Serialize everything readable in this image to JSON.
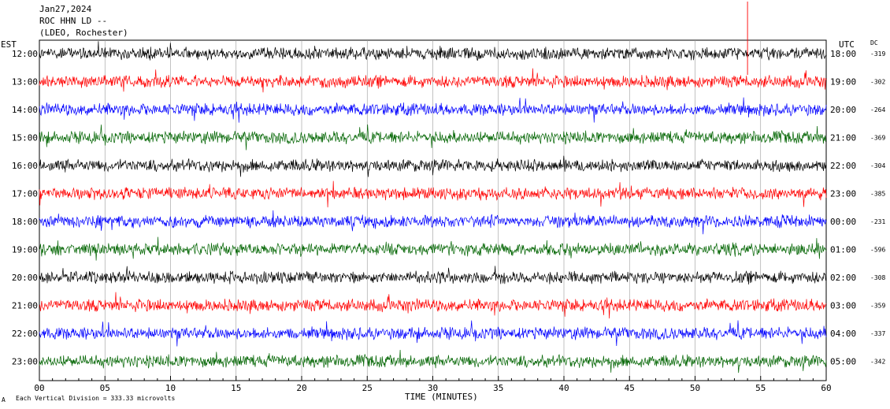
{
  "header": {
    "date": "Jan27,2024",
    "station": "ROC HHN LD --",
    "network": "(LDEO, Rochester)"
  },
  "left_axis_title": "EST",
  "right_axis_title": "UTC",
  "dc_title": "DC",
  "footer": {
    "xlabel": "TIME (MINUTES)",
    "scale_note": "Each Vertical Division =  333.33 microvolts",
    "corner_mark": "A"
  },
  "chart_data": {
    "type": "line",
    "title": "",
    "xlabel": "TIME (MINUTES)",
    "xlim": [
      0,
      60
    ],
    "x_ticks": [
      "00",
      "05",
      "10",
      "15",
      "20",
      "25",
      "30",
      "35",
      "40",
      "45",
      "50",
      "55",
      "60"
    ],
    "trace_colors": [
      "#000000",
      "#ff0000",
      "#0000ff",
      "#006400"
    ],
    "rows": [
      {
        "est": "12:00",
        "utc": "18:00",
        "dc": "-319",
        "color": "#000000"
      },
      {
        "est": "13:00",
        "utc": "19:00",
        "dc": "-302",
        "color": "#ff0000"
      },
      {
        "est": "14:00",
        "utc": "20:00",
        "dc": "-264",
        "color": "#0000ff"
      },
      {
        "est": "15:00",
        "utc": "21:00",
        "dc": "-369",
        "color": "#006400"
      },
      {
        "est": "16:00",
        "utc": "22:00",
        "dc": "-304",
        "color": "#000000"
      },
      {
        "est": "17:00",
        "utc": "23:00",
        "dc": "-385",
        "color": "#ff0000"
      },
      {
        "est": "18:00",
        "utc": "00:00",
        "dc": "-231",
        "color": "#0000ff"
      },
      {
        "est": "19:00",
        "utc": "01:00",
        "dc": "-596",
        "color": "#006400"
      },
      {
        "est": "20:00",
        "utc": "02:00",
        "dc": "-308",
        "color": "#000000"
      },
      {
        "est": "21:00",
        "utc": "03:00",
        "dc": "-359",
        "color": "#ff0000"
      },
      {
        "est": "22:00",
        "utc": "04:00",
        "dc": "-337",
        "color": "#0000ff"
      },
      {
        "est": "23:00",
        "utc": "05:00",
        "dc": "-342",
        "color": "#006400"
      }
    ]
  }
}
